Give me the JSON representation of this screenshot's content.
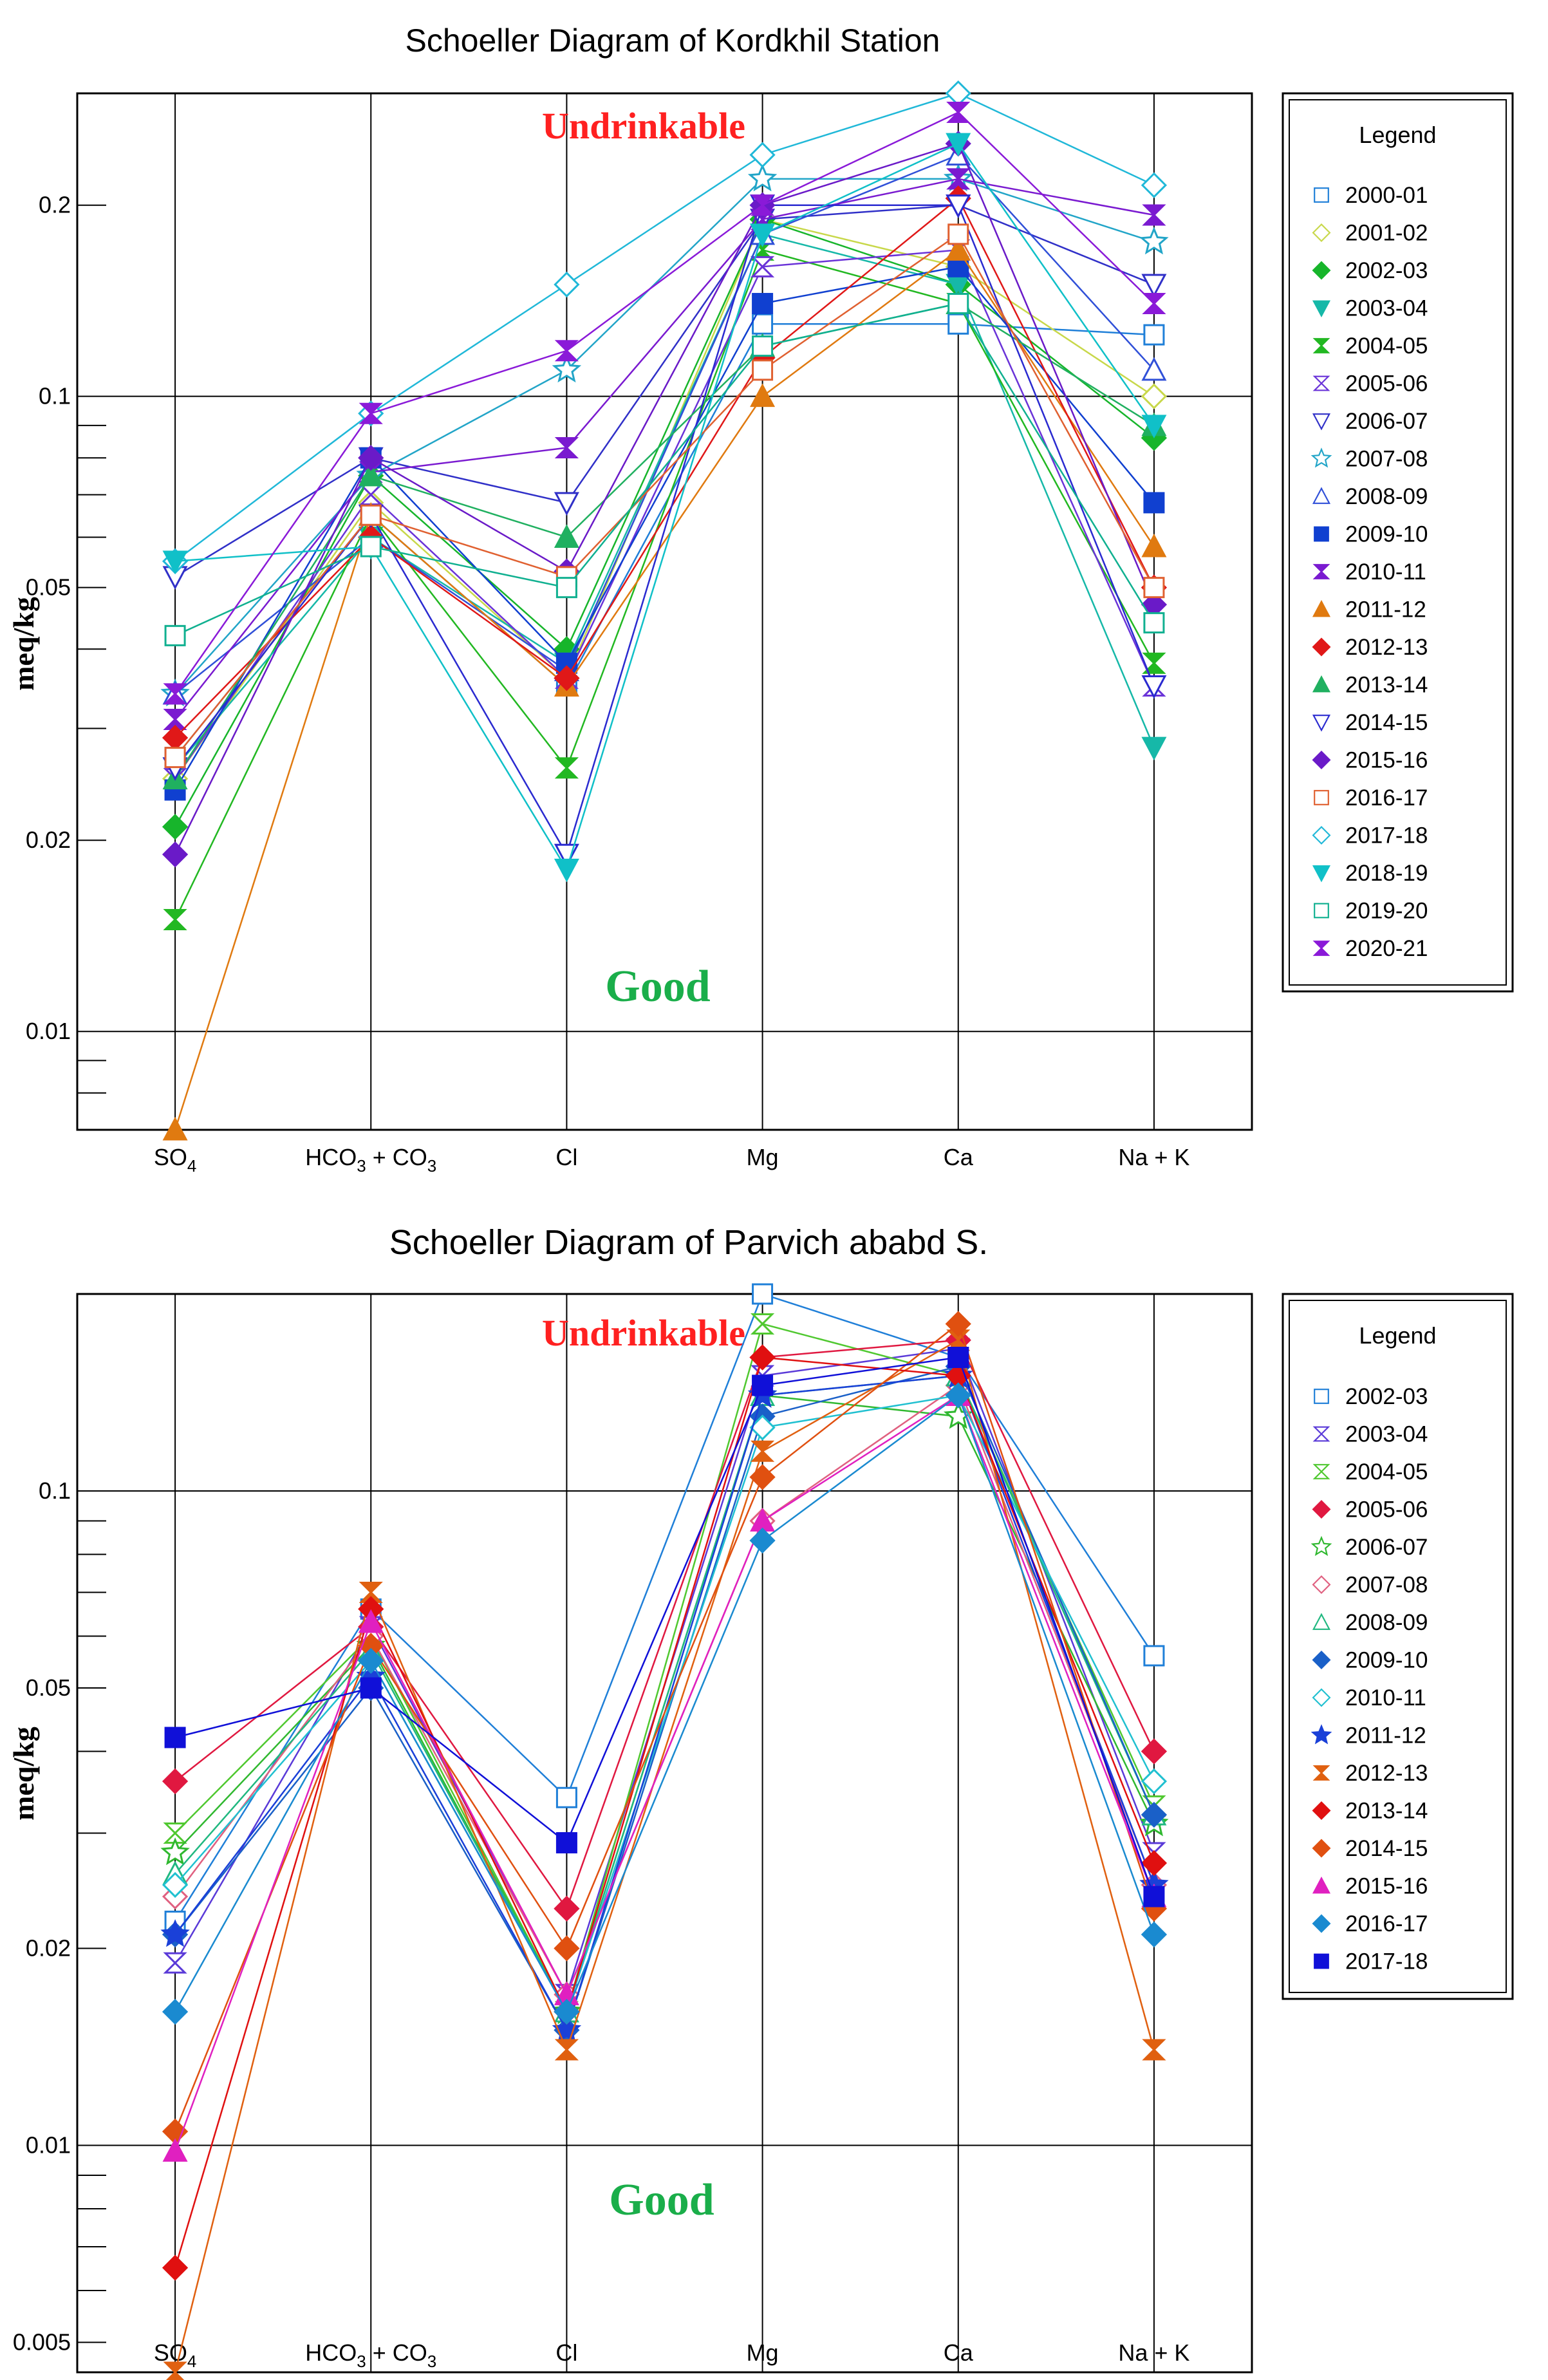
{
  "chart_data": [
    {
      "type": "line",
      "title": "Schoeller Diagram of Kordkhil Station",
      "ylabel": "meq/kg",
      "yscale": "log",
      "ylim": [
        0.007,
        0.3
      ],
      "yticks": [
        {
          "value": 0.01,
          "label": "0.01"
        },
        {
          "value": 0.02,
          "label": "0.02"
        },
        {
          "value": 0.05,
          "label": "0.05"
        },
        {
          "value": 0.1,
          "label": "0.1"
        },
        {
          "value": 0.2,
          "label": "0.2"
        }
      ],
      "categories": [
        "SO4",
        "HCO3 + CO3",
        "Cl",
        "Mg",
        "Ca",
        "Na + K"
      ],
      "category_labels": [
        {
          "main": "SO",
          "sub": "4",
          "tail": ""
        },
        {
          "main": "HCO",
          "sub": "3",
          "tail": " + CO",
          "sub2": "3"
        },
        {
          "main": "Cl",
          "sub": "",
          "tail": ""
        },
        {
          "main": "Mg",
          "sub": "",
          "tail": ""
        },
        {
          "main": "Ca",
          "sub": "",
          "tail": ""
        },
        {
          "main": "Na + K",
          "sub": "",
          "tail": ""
        }
      ],
      "zones": {
        "upper": "Undrinkable",
        "lower": "Good",
        "upper_color": "#ff2020",
        "lower_color": "#1aae4a"
      },
      "legend_title": "Legend",
      "series": [
        {
          "name": "2000-01",
          "color": "#1f7fd8",
          "marker": "square-open",
          "values": [
            0.027,
            0.065,
            0.035,
            0.13,
            0.13,
            0.125
          ]
        },
        {
          "name": "2001-02",
          "color": "#c8d84a",
          "marker": "diamond-open",
          "values": [
            0.025,
            0.068,
            0.036,
            0.19,
            0.16,
            0.1
          ]
        },
        {
          "name": "2002-03",
          "color": "#17b52b",
          "marker": "diamond",
          "values": [
            0.021,
            0.075,
            0.04,
            0.19,
            0.15,
            0.086
          ]
        },
        {
          "name": "2003-04",
          "color": "#16b8a8",
          "marker": "triangle-down",
          "values": [
            0.026,
            0.06,
            0.038,
            0.18,
            0.15,
            0.028
          ]
        },
        {
          "name": "2004-05",
          "color": "#22b822",
          "marker": "bowtie",
          "values": [
            0.015,
            0.065,
            0.026,
            0.17,
            0.14,
            0.038
          ]
        },
        {
          "name": "2005-06",
          "color": "#6a33d8",
          "marker": "bowtie-open",
          "values": [
            0.025,
            0.07,
            0.036,
            0.16,
            0.17,
            0.035
          ]
        },
        {
          "name": "2006-07",
          "color": "#3030c8",
          "marker": "triangle-down-open",
          "values": [
            0.052,
            0.08,
            0.068,
            0.19,
            0.2,
            0.15
          ]
        },
        {
          "name": "2007-08",
          "color": "#22a5c8",
          "marker": "star-open",
          "values": [
            0.034,
            0.075,
            0.11,
            0.22,
            0.22,
            0.175
          ]
        },
        {
          "name": "2008-09",
          "color": "#3050d8",
          "marker": "triangle-open",
          "values": [
            0.034,
            0.06,
            0.037,
            0.18,
            0.24,
            0.11
          ]
        },
        {
          "name": "2009-10",
          "color": "#1040d0",
          "marker": "square",
          "values": [
            0.024,
            0.08,
            0.038,
            0.14,
            0.16,
            0.068
          ]
        },
        {
          "name": "2010-11",
          "color": "#7a1ad0",
          "marker": "bowtie",
          "values": [
            0.031,
            0.076,
            0.083,
            0.19,
            0.22,
            0.193
          ]
        },
        {
          "name": "2011-12",
          "color": "#e07a10",
          "marker": "triangle",
          "values": [
            0.007,
            0.065,
            0.035,
            0.1,
            0.17,
            0.058
          ]
        },
        {
          "name": "2012-13",
          "color": "#e01818",
          "marker": "diamond",
          "values": [
            0.029,
            0.06,
            0.036,
            0.115,
            0.205,
            0.05
          ]
        },
        {
          "name": "2013-14",
          "color": "#20b060",
          "marker": "triangle",
          "values": [
            0.025,
            0.075,
            0.06,
            0.12,
            0.14,
            0.09
          ]
        },
        {
          "name": "2014-15",
          "color": "#2a2ad0",
          "marker": "triangle-down-open",
          "values": [
            0.026,
            0.065,
            0.019,
            0.2,
            0.2,
            0.035
          ]
        },
        {
          "name": "2015-16",
          "color": "#6a1ac8",
          "marker": "diamond",
          "values": [
            0.019,
            0.08,
            0.053,
            0.2,
            0.25,
            0.047
          ]
        },
        {
          "name": "2016-17",
          "color": "#e06030",
          "marker": "square-open",
          "values": [
            0.027,
            0.065,
            0.052,
            0.11,
            0.18,
            0.05
          ]
        },
        {
          "name": "2017-18",
          "color": "#20b8d8",
          "marker": "diamond-open",
          "values": [
            0.055,
            0.094,
            0.15,
            0.24,
            0.3,
            0.215
          ]
        },
        {
          "name": "2018-19",
          "color": "#10c0c8",
          "marker": "triangle-down",
          "values": [
            0.055,
            0.058,
            0.018,
            0.18,
            0.25,
            0.09
          ]
        },
        {
          "name": "2019-20",
          "color": "#10b090",
          "marker": "square-open",
          "values": [
            0.042,
            0.058,
            0.05,
            0.12,
            0.14,
            0.044
          ]
        },
        {
          "name": "2020-21",
          "color": "#8a1ad8",
          "marker": "bowtie",
          "values": [
            0.034,
            0.094,
            0.118,
            0.2,
            0.28,
            0.14
          ]
        }
      ]
    },
    {
      "type": "line",
      "title": "Schoeller Diagram of Parvich ababd S.",
      "ylabel": "meq/kg",
      "yscale": "log",
      "ylim": [
        0.0045,
        0.2
      ],
      "yticks": [
        {
          "value": 0.005,
          "label": "0.005"
        },
        {
          "value": 0.01,
          "label": "0.01"
        },
        {
          "value": 0.02,
          "label": "0.02"
        },
        {
          "value": 0.05,
          "label": "0.05"
        },
        {
          "value": 0.1,
          "label": "0.1"
        }
      ],
      "categories": [
        "SO4",
        "HCO3 + CO3",
        "Cl",
        "Mg",
        "Ca",
        "Na + K"
      ],
      "category_labels": [
        {
          "main": "SO",
          "sub": "4",
          "tail": ""
        },
        {
          "main": "HCO",
          "sub": "3",
          "tail": " + CO",
          "sub2": "3"
        },
        {
          "main": "Cl",
          "sub": "",
          "tail": ""
        },
        {
          "main": "Mg",
          "sub": "",
          "tail": ""
        },
        {
          "main": "Ca",
          "sub": "",
          "tail": ""
        },
        {
          "main": "Na + K",
          "sub": "",
          "tail": ""
        }
      ],
      "zones": {
        "upper": "Undrinkable",
        "lower": "Good",
        "upper_color": "#ff2020",
        "lower_color": "#1aae4a"
      },
      "legend_title": "Legend",
      "series": [
        {
          "name": "2002-03",
          "color": "#1f7fd8",
          "marker": "square-open",
          "values": [
            0.022,
            0.066,
            0.034,
            0.2,
            0.16,
            0.056
          ]
        },
        {
          "name": "2003-04",
          "color": "#5a3ad8",
          "marker": "bowtie-open",
          "values": [
            0.019,
            0.062,
            0.017,
            0.15,
            0.165,
            0.028
          ]
        },
        {
          "name": "2004-05",
          "color": "#50c830",
          "marker": "bowtie-open",
          "values": [
            0.03,
            0.06,
            0.016,
            0.18,
            0.15,
            0.033
          ]
        },
        {
          "name": "2005-06",
          "color": "#e01840",
          "marker": "diamond",
          "values": [
            0.036,
            0.062,
            0.023,
            0.16,
            0.17,
            0.04
          ]
        },
        {
          "name": "2006-07",
          "color": "#30b830",
          "marker": "star-open",
          "values": [
            0.028,
            0.058,
            0.016,
            0.14,
            0.13,
            0.031
          ]
        },
        {
          "name": "2007-08",
          "color": "#e06080",
          "marker": "diamond-open",
          "values": [
            0.024,
            0.06,
            0.017,
            0.09,
            0.145,
            0.025
          ]
        },
        {
          "name": "2008-09",
          "color": "#20b880",
          "marker": "triangle-open",
          "values": [
            0.026,
            0.057,
            0.016,
            0.14,
            0.15,
            0.032
          ]
        },
        {
          "name": "2009-10",
          "color": "#1a60c8",
          "marker": "diamond",
          "values": [
            0.021,
            0.05,
            0.015,
            0.13,
            0.155,
            0.032
          ]
        },
        {
          "name": "2010-11",
          "color": "#20c0d0",
          "marker": "diamond-open",
          "values": [
            0.025,
            0.055,
            0.016,
            0.125,
            0.14,
            0.036
          ]
        },
        {
          "name": "2011-12",
          "color": "#1a40d8",
          "marker": "star",
          "values": [
            0.021,
            0.052,
            0.015,
            0.14,
            0.15,
            0.025
          ]
        },
        {
          "name": "2012-13",
          "color": "#e06010",
          "marker": "bowtie",
          "values": [
            0.0045,
            0.07,
            0.014,
            0.115,
            0.17,
            0.014
          ]
        },
        {
          "name": "2013-14",
          "color": "#e01010",
          "marker": "diamond",
          "values": [
            0.0065,
            0.066,
            0.016,
            0.16,
            0.15,
            0.027
          ]
        },
        {
          "name": "2014-15",
          "color": "#e05010",
          "marker": "diamond",
          "values": [
            0.0105,
            0.058,
            0.02,
            0.105,
            0.18,
            0.023
          ]
        },
        {
          "name": "2015-16",
          "color": "#e020c0",
          "marker": "triangle",
          "values": [
            0.0098,
            0.063,
            0.017,
            0.09,
            0.14,
            0.024
          ]
        },
        {
          "name": "2016-17",
          "color": "#1a8ad0",
          "marker": "diamond",
          "values": [
            0.016,
            0.055,
            0.016,
            0.084,
            0.14,
            0.021
          ]
        },
        {
          "name": "2017-18",
          "color": "#1010d8",
          "marker": "square",
          "values": [
            0.042,
            0.05,
            0.029,
            0.145,
            0.16,
            0.024
          ]
        }
      ]
    }
  ]
}
